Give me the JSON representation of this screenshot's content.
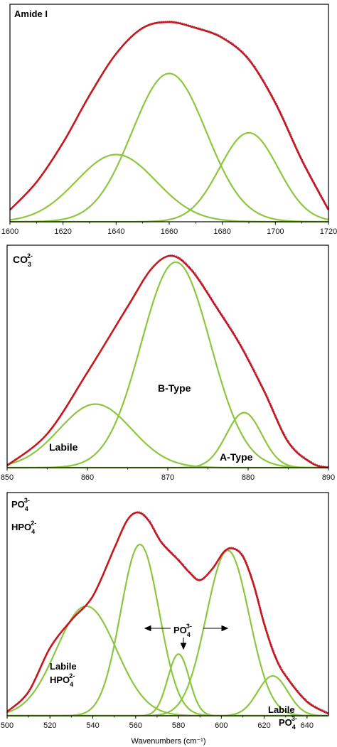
{
  "xlabel": "Wavenumbers (cm⁻¹)",
  "colors": {
    "envelope": "#c8161d",
    "component": "#8dc63f",
    "raw": "#6f6fb0"
  },
  "chart_data": [
    {
      "type": "line",
      "title": "Amide I",
      "xlim": [
        1600,
        1720
      ],
      "ylim": [
        0,
        1.1
      ],
      "xticks": [
        1600,
        1620,
        1640,
        1660,
        1680,
        1700,
        1720
      ],
      "components": [
        {
          "center": 1640,
          "amplitude": 0.34,
          "sigma": 15
        },
        {
          "center": 1660,
          "amplitude": 0.75,
          "sigma": 14
        },
        {
          "center": 1690,
          "amplitude": 0.45,
          "sigma": 11
        }
      ],
      "envelope": [
        [
          1600,
          0.06
        ],
        [
          1610,
          0.2
        ],
        [
          1620,
          0.4
        ],
        [
          1630,
          0.64
        ],
        [
          1640,
          0.85
        ],
        [
          1650,
          0.98
        ],
        [
          1660,
          1.01
        ],
        [
          1670,
          0.98
        ],
        [
          1680,
          0.93
        ],
        [
          1690,
          0.82
        ],
        [
          1700,
          0.6
        ],
        [
          1710,
          0.31
        ],
        [
          1720,
          0.06
        ]
      ],
      "annotations": []
    },
    {
      "type": "line",
      "title": "CO3 2-",
      "title_main": "CO",
      "title_sub": "3",
      "title_sup": "2-",
      "xlim": [
        850,
        890
      ],
      "ylim": [
        0,
        1.05
      ],
      "xticks": [
        850,
        860,
        870,
        880,
        890
      ],
      "components": [
        {
          "center": 861,
          "amplitude": 0.3,
          "sigma": 4.5
        },
        {
          "center": 871,
          "amplitude": 0.97,
          "sigma": 4.3
        },
        {
          "center": 879.5,
          "amplitude": 0.26,
          "sigma": 2.2
        }
      ],
      "envelope": [
        [
          850,
          0.01
        ],
        [
          855,
          0.16
        ],
        [
          860,
          0.45
        ],
        [
          865,
          0.76
        ],
        [
          868,
          0.94
        ],
        [
          870.5,
          1.0
        ],
        [
          873,
          0.93
        ],
        [
          876,
          0.76
        ],
        [
          879,
          0.58
        ],
        [
          882,
          0.36
        ],
        [
          885,
          0.12
        ],
        [
          888,
          0.02
        ],
        [
          890,
          0.0
        ]
      ],
      "annotations": [
        {
          "id": "labile",
          "lines": [
            "Labile"
          ]
        },
        {
          "id": "b-type",
          "lines": [
            "B-Type"
          ]
        },
        {
          "id": "a-type",
          "lines": [
            "A-Type"
          ]
        }
      ]
    },
    {
      "type": "line",
      "title": "PO4 3- / HPO4 2-",
      "title_lines": [
        {
          "main": "PO",
          "sub": "4",
          "sup": "3-"
        },
        {
          "main": "HPO",
          "sub": "4",
          "sup": "2-"
        }
      ],
      "xlim": [
        500,
        650
      ],
      "ylim": [
        0,
        1.12
      ],
      "xticks": [
        500,
        520,
        540,
        560,
        580,
        600,
        620,
        640
      ],
      "components": [
        {
          "center": 537,
          "amplitude": 0.55,
          "sigma": 14
        },
        {
          "center": 562,
          "amplitude": 0.86,
          "sigma": 9
        },
        {
          "center": 580,
          "amplitude": 0.31,
          "sigma": 5
        },
        {
          "center": 603,
          "amplitude": 0.83,
          "sigma": 10
        },
        {
          "center": 624,
          "amplitude": 0.2,
          "sigma": 7
        }
      ],
      "envelope": [
        [
          500,
          0.02
        ],
        [
          510,
          0.12
        ],
        [
          520,
          0.34
        ],
        [
          530,
          0.48
        ],
        [
          540,
          0.6
        ],
        [
          550,
          0.84
        ],
        [
          556,
          0.98
        ],
        [
          561,
          1.02
        ],
        [
          566,
          0.98
        ],
        [
          572,
          0.87
        ],
        [
          580,
          0.78
        ],
        [
          585,
          0.72
        ],
        [
          590,
          0.68
        ],
        [
          596,
          0.74
        ],
        [
          601,
          0.82
        ],
        [
          605,
          0.84
        ],
        [
          610,
          0.8
        ],
        [
          615,
          0.66
        ],
        [
          620,
          0.46
        ],
        [
          625,
          0.3
        ],
        [
          630,
          0.2
        ],
        [
          640,
          0.07
        ],
        [
          650,
          0.01
        ]
      ],
      "annotations": [
        {
          "id": "po4-center",
          "main": "PO",
          "sub": "4",
          "sup": "3-"
        },
        {
          "id": "labile-hpo4",
          "lines": [
            "Labile"
          ],
          "main": "HPO",
          "sub": "4",
          "sup": "2-"
        },
        {
          "id": "labile-po4",
          "lines": [
            "Labile"
          ],
          "main": "PO",
          "sub": "4",
          "sup": "3-"
        }
      ]
    }
  ]
}
